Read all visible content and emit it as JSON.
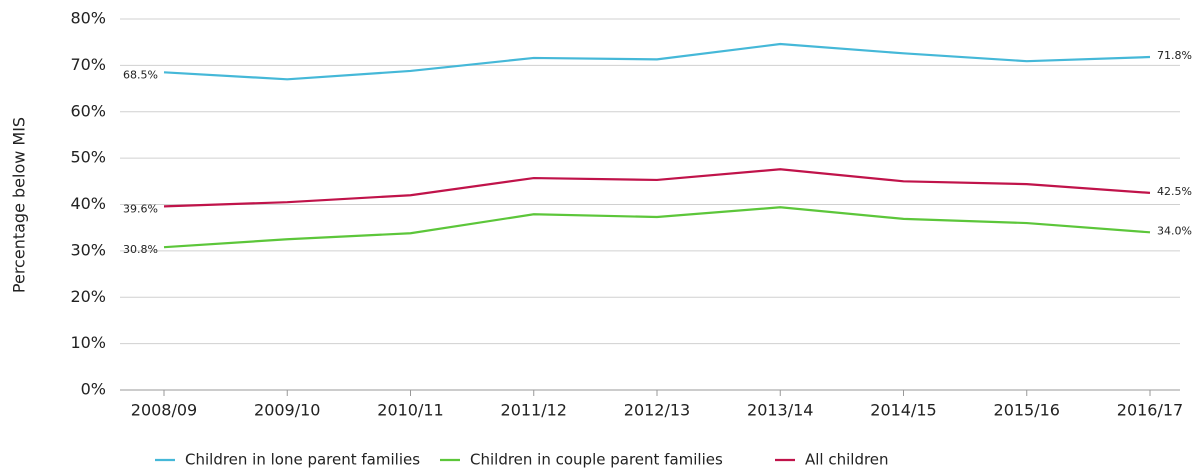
{
  "chart_data": {
    "type": "line",
    "y_label": "Percentage below MIS",
    "categories": [
      "2008/09",
      "2009/10",
      "2010/11",
      "2011/12",
      "2012/13",
      "2013/14",
      "2014/15",
      "2015/16",
      "2016/17"
    ],
    "series": [
      {
        "name": "Children in lone parent families",
        "color": "#45b8d8",
        "values": [
          68.5,
          67.0,
          68.8,
          71.6,
          71.3,
          74.6,
          72.6,
          70.9,
          71.8
        ],
        "value_labels": [
          "68.5%",
          null,
          null,
          null,
          null,
          null,
          null,
          null,
          "71.8%"
        ]
      },
      {
        "name": "Children in couple parent families",
        "color": "#5cc63a",
        "values": [
          30.8,
          32.5,
          33.8,
          37.9,
          37.3,
          39.4,
          36.9,
          36.0,
          34.0
        ],
        "value_labels": [
          "30.8%",
          null,
          null,
          null,
          null,
          null,
          null,
          null,
          "34.0%"
        ]
      },
      {
        "name": "All children",
        "color": "#c0134a",
        "values": [
          39.6,
          40.5,
          42.0,
          45.7,
          45.3,
          47.6,
          45.0,
          44.4,
          42.5
        ],
        "value_labels": [
          "39.6%",
          null,
          null,
          null,
          null,
          null,
          null,
          null,
          "42.5%"
        ]
      }
    ],
    "ylim": [
      0,
      80
    ],
    "yticks": [
      {
        "value": 0,
        "label": "0%"
      },
      {
        "value": 10,
        "label": "10%"
      },
      {
        "value": 20,
        "label": "20%"
      },
      {
        "value": 30,
        "label": "30%"
      },
      {
        "value": 40,
        "label": "40%"
      },
      {
        "value": 50,
        "label": "50%"
      },
      {
        "value": 60,
        "label": "60%"
      },
      {
        "value": 70,
        "label": "70%"
      },
      {
        "value": 80,
        "label": "80%"
      }
    ],
    "grid": true,
    "legend": "bottom"
  }
}
